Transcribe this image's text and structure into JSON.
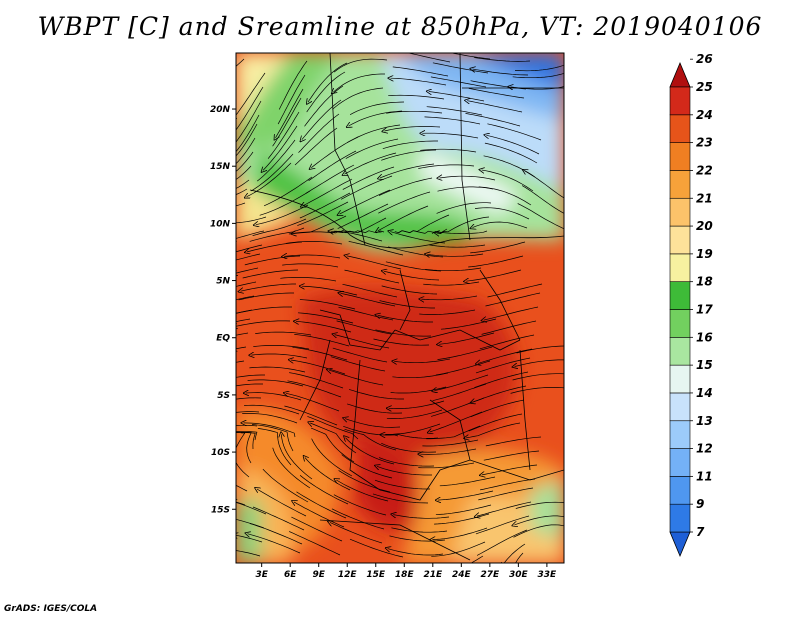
{
  "title": "WBPT [C] and Sreamline at 850hPa, VT: 2019040106",
  "credit": "GrADS: IGES/COLA",
  "map": {
    "lat_labels": [
      "20N",
      "15N",
      "10N",
      "5N",
      "EQ",
      "5S",
      "10S",
      "15S"
    ],
    "lat_values": [
      20,
      15,
      10,
      5,
      0,
      -5,
      -10,
      -15
    ],
    "lon_labels": [
      "3E",
      "6E",
      "9E",
      "12E",
      "15E",
      "18E",
      "21E",
      "24E",
      "27E",
      "30E",
      "33E"
    ],
    "lon_values": [
      3,
      6,
      9,
      12,
      15,
      18,
      21,
      24,
      27,
      30,
      33
    ],
    "lon_range": [
      0.3,
      34.8
    ],
    "lat_range": [
      -19.7,
      24.9
    ]
  },
  "colorbar": {
    "labels": [
      "7",
      "9",
      "11",
      "12",
      "13",
      "14",
      "15",
      "16",
      "17",
      "18",
      "19",
      "20",
      "21",
      "22",
      "23",
      "24",
      "25",
      "26"
    ],
    "colors": [
      "#1e5fd6",
      "#2e7ae6",
      "#4f97f0",
      "#74b1f7",
      "#9ccbfa",
      "#c8e2fb",
      "#e6f6f1",
      "#a9e6a0",
      "#72d05f",
      "#3ebb38",
      "#f7f1a0",
      "#fde29a",
      "#fcc36a",
      "#f7a23a",
      "#f07f22",
      "#e6541a",
      "#d3291a",
      "#b00f0f"
    ]
  }
}
